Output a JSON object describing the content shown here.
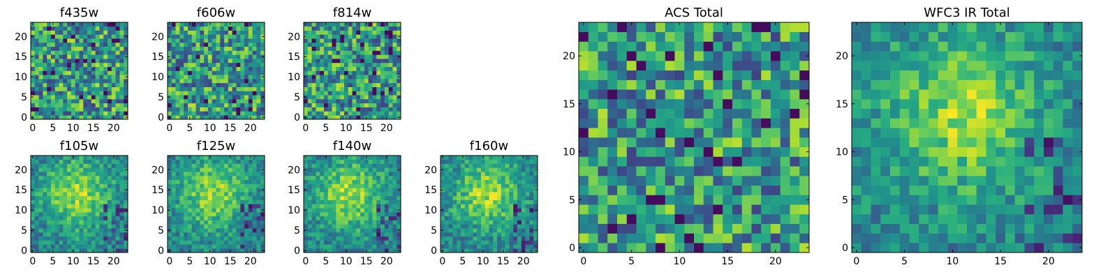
{
  "chart_data": {
    "type": "heatmap",
    "colormap": "viridis",
    "panels": [
      {
        "id": "f435w",
        "title": "f435w",
        "grid": 24,
        "xticks": [
          0,
          5,
          10,
          15,
          20
        ],
        "yticks": [
          0,
          5,
          10,
          15,
          20
        ],
        "texture": "noise"
      },
      {
        "id": "f606w",
        "title": "f606w",
        "grid": 24,
        "xticks": [
          0,
          5,
          10,
          15,
          20
        ],
        "yticks": [
          0,
          5,
          10,
          15,
          20
        ],
        "texture": "noise"
      },
      {
        "id": "f814w",
        "title": "f814w",
        "grid": 24,
        "xticks": [
          0,
          5,
          10,
          15,
          20
        ],
        "yticks": [
          0,
          5,
          10,
          15,
          20
        ],
        "texture": "noise"
      },
      {
        "id": "f105w",
        "title": "f105w",
        "grid": 24,
        "xticks": [
          0,
          5,
          10,
          15,
          20
        ],
        "yticks": [
          0,
          5,
          10,
          15,
          20
        ],
        "texture": "blob"
      },
      {
        "id": "f125w",
        "title": "f125w",
        "grid": 24,
        "xticks": [
          0,
          5,
          10,
          15,
          20
        ],
        "yticks": [
          0,
          5,
          10,
          15,
          20
        ],
        "texture": "blob"
      },
      {
        "id": "f140w",
        "title": "f140w",
        "grid": 24,
        "xticks": [
          0,
          5,
          10,
          15,
          20
        ],
        "yticks": [
          0,
          5,
          10,
          15,
          20
        ],
        "texture": "blob"
      },
      {
        "id": "f160w",
        "title": "f160w",
        "grid": 24,
        "xticks": [
          0,
          5,
          10,
          15,
          20
        ],
        "yticks": [
          0,
          5,
          10,
          15,
          20
        ],
        "texture": "blob"
      },
      {
        "id": "acs",
        "title": "ACS Total",
        "grid": 24,
        "xticks": [
          0,
          5,
          10,
          15,
          20
        ],
        "yticks": [
          0,
          5,
          10,
          15,
          20
        ],
        "texture": "noise"
      },
      {
        "id": "wfc3",
        "title": "WFC3 IR Total",
        "grid": 24,
        "xticks": [
          0,
          5,
          10,
          15,
          20
        ],
        "yticks": [
          0,
          5,
          10,
          15,
          20
        ],
        "texture": "blob"
      }
    ]
  }
}
